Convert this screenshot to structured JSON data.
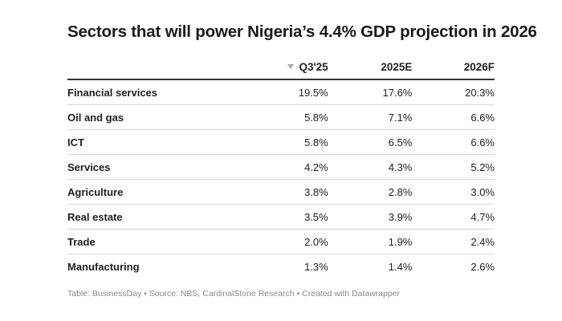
{
  "chart_data": {
    "type": "table",
    "title": "Sectors that will power Nigeria’s 4.4% GDP projection in 2026",
    "columns": [
      "",
      "Q3'25",
      "2025E",
      "2026F"
    ],
    "sorted_column": "Q3'25",
    "sort_direction": "descending",
    "rows": [
      {
        "sector": "Financial services",
        "values": [
          "19.5%",
          "17.6%",
          "20.3%"
        ]
      },
      {
        "sector": "Oil and gas",
        "values": [
          "5.8%",
          "7.1%",
          "6.6%"
        ]
      },
      {
        "sector": "ICT",
        "values": [
          "5.8%",
          "6.5%",
          "6.6%"
        ]
      },
      {
        "sector": "Services",
        "values": [
          "4.2%",
          "4.3%",
          "5.2%"
        ]
      },
      {
        "sector": "Agriculture",
        "values": [
          "3.8%",
          "2.8%",
          "3.0%"
        ]
      },
      {
        "sector": "Real estate",
        "values": [
          "3.5%",
          "3.9%",
          "4.7%"
        ]
      },
      {
        "sector": "Trade",
        "values": [
          "2.0%",
          "1.9%",
          "2.4%"
        ]
      },
      {
        "sector": "Manufacturing",
        "values": [
          "1.3%",
          "1.4%",
          "2.6%"
        ]
      }
    ],
    "footer": "Table: BusinessDay • Source: NBS, CardinalStone Research • Created with Datawrapper"
  },
  "icons": {
    "sort": "sort-desc-triangle-icon"
  }
}
